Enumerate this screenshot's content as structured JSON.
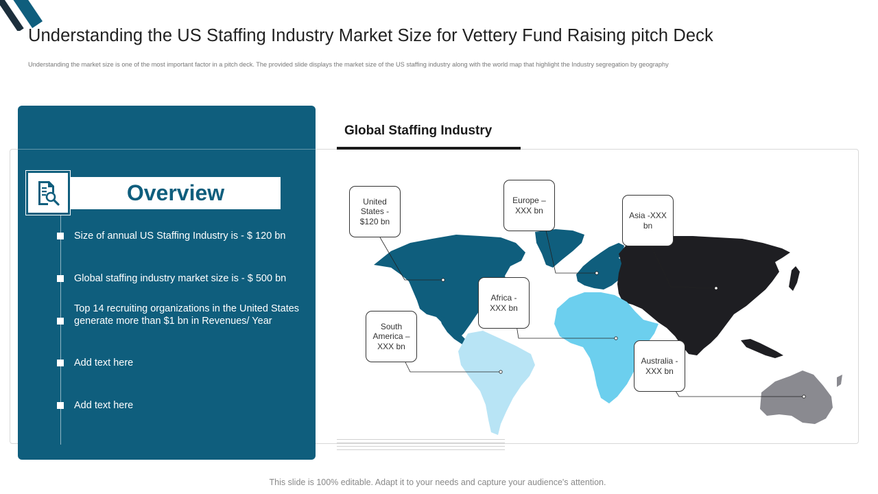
{
  "header": {
    "title": "Understanding the US Staffing Industry Market Size for Vettery Fund Raising pitch Deck",
    "subtitle": "Understanding the market size is one of the most important  factor in a pitch deck. The provided slide displays the market size of the US  staffing industry along with the world map that highlight the Industry segregation by geography"
  },
  "overview": {
    "heading": "Overview",
    "icon": "document-search-icon",
    "items": [
      {
        "text": "Size of annual US Staffing Industry is - $ 120 bn"
      },
      {
        "text": "Global staffing industry market size is - $ 500 bn"
      },
      {
        "text": "Top 14 recruiting organizations in the United States generate  more than $1 bn in Revenues/ Year"
      },
      {
        "text": "Add text here"
      },
      {
        "text": "Add text here"
      }
    ]
  },
  "map": {
    "heading": "Global Staffing Industry",
    "callouts": {
      "us": "United States - $120 bn",
      "europe": "Europe – XXX bn",
      "asia": "Asia -XXX bn",
      "africa": "Africa - XXX bn",
      "south_america": "South America – XXX bn",
      "australia": "Australia -XXX bn"
    },
    "colors": {
      "north_america": "#0f5e7d",
      "europe": "#0f5e7d",
      "asia": "#1e1e22",
      "africa": "#6ccfee",
      "south_america": "#b8e4f5",
      "australia": "#8a8a90"
    }
  },
  "footer": {
    "note": "This slide is 100% editable. Adapt it to your needs and capture your audience's attention."
  }
}
